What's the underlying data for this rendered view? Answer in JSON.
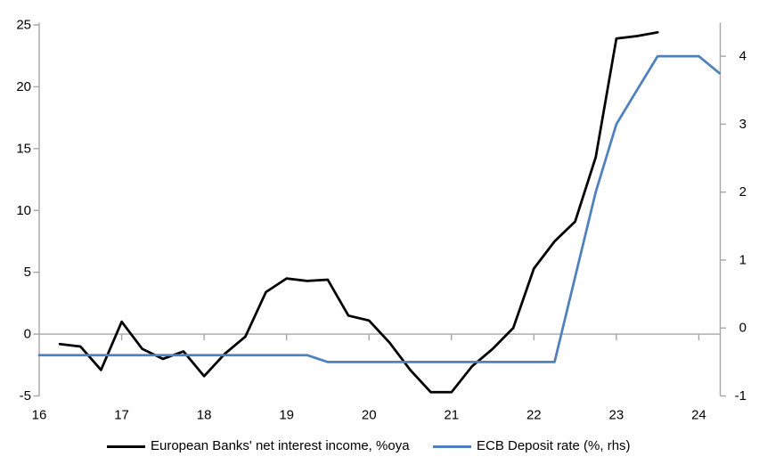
{
  "figure": {
    "background": "#ffffff",
    "axis_color": "#a6a6a6",
    "text_color": "#000000"
  },
  "chart_data": {
    "type": "line",
    "title": "",
    "xlabel": "",
    "ylabel_left": "",
    "ylabel_right": "",
    "grid": "zero-line-only",
    "legend_position": "bottom",
    "x": {
      "ticks": [
        16,
        17,
        18,
        19,
        20,
        21,
        22,
        23,
        24
      ],
      "range": [
        16,
        24.26
      ]
    },
    "y_left": {
      "ticks": [
        25,
        20,
        15,
        10,
        5,
        0,
        -5
      ],
      "range": [
        -5,
        25
      ]
    },
    "y_right": {
      "ticks": [
        4,
        3,
        2,
        1,
        0,
        -1
      ],
      "range": [
        -1,
        4.46
      ]
    },
    "series": [
      {
        "name": "European Banks' net interest income, %oya",
        "axis": "left",
        "color": "#000000",
        "x": [
          16.25,
          16.5,
          16.75,
          17,
          17.25,
          17.5,
          17.75,
          18,
          18.25,
          18.5,
          18.75,
          19,
          19.25,
          19.5,
          19.75,
          20,
          20.25,
          20.5,
          20.75,
          21,
          21.25,
          21.5,
          21.75,
          22,
          22.25,
          22.5,
          22.75,
          23,
          23.25,
          23.5
        ],
        "y": [
          -0.8,
          -1.0,
          -2.9,
          1.0,
          -1.2,
          -2.0,
          -1.4,
          -3.4,
          -1.6,
          -0.2,
          3.4,
          4.5,
          4.3,
          4.4,
          1.5,
          1.1,
          -0.7,
          -2.9,
          -4.7,
          -4.7,
          -2.6,
          -1.2,
          0.5,
          5.3,
          7.5,
          9.1,
          14.3,
          23.9,
          24.1,
          24.4
        ]
      },
      {
        "name": "ECB Deposit rate (%, rhs)",
        "axis": "right",
        "color": "#4f81bd",
        "x": [
          16,
          16.25,
          16.5,
          16.75,
          17,
          17.25,
          17.5,
          17.75,
          18,
          18.25,
          18.5,
          18.75,
          19,
          19.25,
          19.5,
          19.75,
          20,
          20.25,
          20.5,
          20.75,
          21,
          21.25,
          21.5,
          21.75,
          22,
          22.25,
          22.5,
          22.75,
          23,
          23.25,
          23.5,
          23.75,
          24,
          24.25
        ],
        "y": [
          -0.4,
          -0.4,
          -0.4,
          -0.4,
          -0.4,
          -0.4,
          -0.4,
          -0.4,
          -0.4,
          -0.4,
          -0.4,
          -0.4,
          -0.4,
          -0.4,
          -0.5,
          -0.5,
          -0.5,
          -0.5,
          -0.5,
          -0.5,
          -0.5,
          -0.5,
          -0.5,
          -0.5,
          -0.5,
          -0.5,
          0.75,
          2.0,
          3.0,
          3.5,
          4.0,
          4.0,
          4.0,
          3.75
        ]
      }
    ]
  },
  "legend": {
    "items": [
      {
        "label": "European Banks' net interest income, %oya",
        "color": "#000000"
      },
      {
        "label": "ECB Deposit rate (%, rhs)",
        "color": "#4f81bd"
      }
    ]
  }
}
